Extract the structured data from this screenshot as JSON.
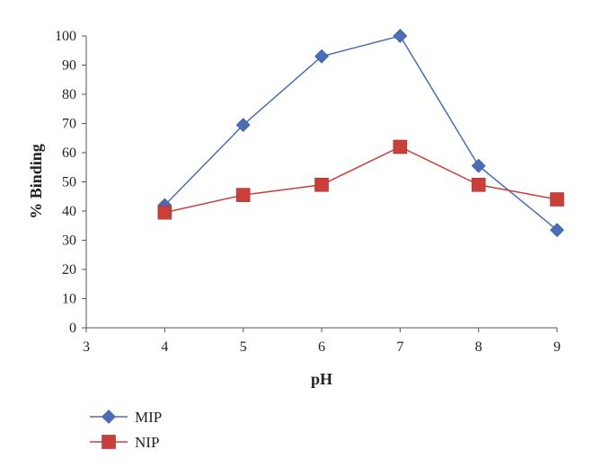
{
  "chart_data": {
    "type": "line",
    "xlabel": "pH",
    "ylabel": "% Binding",
    "xlim": [
      3,
      9
    ],
    "ylim": [
      0,
      100
    ],
    "x_ticks": [
      3,
      4,
      5,
      6,
      7,
      8,
      9
    ],
    "y_ticks": [
      0,
      10,
      20,
      30,
      40,
      50,
      60,
      70,
      80,
      90,
      100
    ],
    "grid": false,
    "legend_position": "bottom-left",
    "series": [
      {
        "name": "MIP",
        "marker": "diamond",
        "color": "#4a6db5",
        "x": [
          4,
          5,
          6,
          7,
          8,
          9
        ],
        "y": [
          42,
          69.5,
          93,
          100,
          55.5,
          33.5
        ]
      },
      {
        "name": "NIP",
        "marker": "square",
        "color": "#c9403a",
        "x": [
          4,
          5,
          6,
          7,
          8,
          9
        ],
        "y": [
          39.5,
          45.5,
          49,
          62,
          49,
          44
        ]
      }
    ]
  }
}
